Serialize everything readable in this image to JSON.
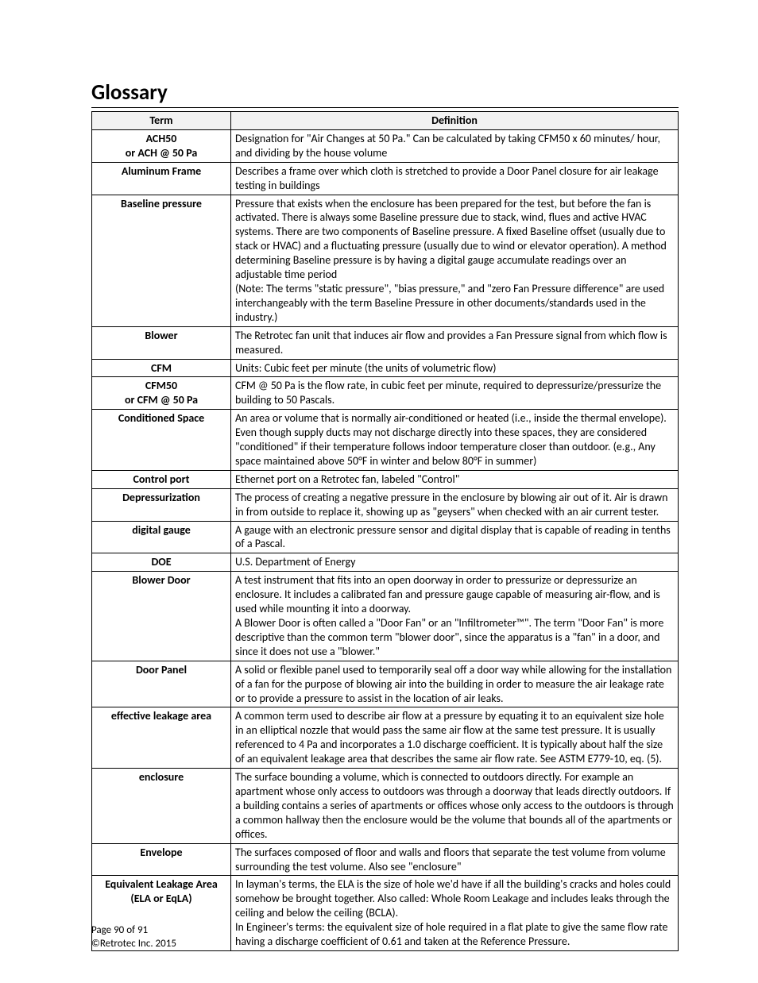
{
  "title": "Glossary",
  "columns": {
    "term": "Term",
    "definition": "Definition"
  },
  "rows": [
    {
      "term": "ACH50\nor ACH @ 50 Pa",
      "definition": "Designation for \"Air Changes at 50 Pa.\"  Can be calculated by taking CFM50 x 60 minutes/ hour, and dividing by the house volume"
    },
    {
      "term": "Aluminum Frame",
      "definition": "Describes a frame over which cloth is stretched to provide a Door Panel closure for air leakage testing in buildings"
    },
    {
      "term": "Baseline pressure",
      "definition": "Pressure that exists when the enclosure has been prepared for the test, but before the fan is activated.  There is always some Baseline pressure due to stack, wind, flues and active HVAC systems.  There are two components of Baseline pressure.  A fixed Baseline offset (usually due to stack or HVAC) and a fluctuating pressure (usually due to wind or elevator operation).  A method determining Baseline pressure is by having a digital gauge accumulate readings over an adjustable time period\n(Note: The terms \"static pressure\", \"bias pressure,\" and \"zero Fan Pressure difference\" are used interchangeably with the term Baseline Pressure in other documents/standards used in the industry.)"
    },
    {
      "term": "Blower",
      "definition": "The Retrotec fan unit that induces air flow and provides a Fan Pressure signal from which flow is measured."
    },
    {
      "term": "CFM",
      "definition": "Units: Cubic feet per minute (the units of volumetric flow)"
    },
    {
      "term": "CFM50\nor CFM @ 50 Pa",
      "definition": "CFM @ 50 Pa is the flow rate, in cubic feet per minute, required to depressurize/pressurize the building to 50 Pascals."
    },
    {
      "term": "Conditioned Space",
      "definition": "An area or volume that is normally air-conditioned or heated (i.e.,  inside the thermal envelope).  Even though supply ducts may not discharge directly into these spaces, they are considered \"conditioned\" if their temperature follows indoor temperature closer than outdoor.  (e.g.,  Any space maintained above 50°F in winter and below 80°F in summer)"
    },
    {
      "term": "Control port",
      "definition": "Ethernet port on a Retrotec fan, labeled \"Control\""
    },
    {
      "term": "Depressurization",
      "definition": "The process of creating a negative pressure in the enclosure by blowing air out of it.  Air is drawn in from outside to replace it, showing up as \"geysers\" when checked with an air current tester."
    },
    {
      "term": "digital gauge",
      "definition": "A gauge with an electronic pressure sensor and digital display that is capable of reading in tenths of a Pascal."
    },
    {
      "term": "DOE",
      "definition": "U.S.  Department of Energy"
    },
    {
      "term": "Blower Door",
      "definition": "A test instrument that fits into an open doorway in order to pressurize or depressurize an enclosure.  It includes a calibrated fan and pressure gauge capable of measuring air-flow, and is used while mounting it into a doorway.\nA Blower Door is often called a \"Door Fan\" or an \"Infiltrometer™\".  The term \"Door Fan\" is more descriptive than the common term \"blower door\", since the apparatus is a \"fan\" in a door, and since it does not use a \"blower.\""
    },
    {
      "term": "Door Panel",
      "definition": "A solid or flexible panel used to temporarily seal off a door way while allowing for the installation of a fan for the purpose of blowing air into the building in order to measure the air leakage rate or to provide a pressure to assist in the location of air leaks."
    },
    {
      "term": "effective leakage area",
      "definition": "A common term used to describe air flow at a pressure by equating it to an equivalent size hole in an elliptical nozzle that would pass the same air flow at the same test pressure.  It is usually referenced to 4 Pa and incorporates a 1.0 discharge coefficient.  It is typically about half the size of an equivalent leakage area that describes the same air flow rate.  See ASTM E779-10, eq. (5)."
    },
    {
      "term": "enclosure",
      "definition": "The surface bounding a volume, which is connected to outdoors directly.  For example an apartment whose only access to outdoors was through a doorway that leads directly outdoors.  If a building contains a series of apartments or offices whose only access to the outdoors is through a common hallway then the enclosure would be the volume that bounds all of the apartments or offices."
    },
    {
      "term": "Envelope",
      "definition": "The surfaces composed of floor and walls and floors that separate the test volume from volume surrounding the test volume.  Also see \"enclosure\""
    },
    {
      "term": "Equivalent Leakage Area (ELA or EqLA)",
      "definition": "In layman's terms, the ELA is the size of hole we'd have if all the building's cracks and holes could somehow be brought together.  Also called: Whole Room Leakage and includes leaks through the ceiling and below the ceiling (BCLA).\nIn Engineer's terms: the equivalent size of hole required in a flat plate to give the same flow rate having a discharge coefficient of 0.61 and taken at the Reference Pressure."
    }
  ],
  "footer": {
    "page_line": "Page 90 of 91",
    "copyright": "©Retrotec Inc. 2015"
  }
}
